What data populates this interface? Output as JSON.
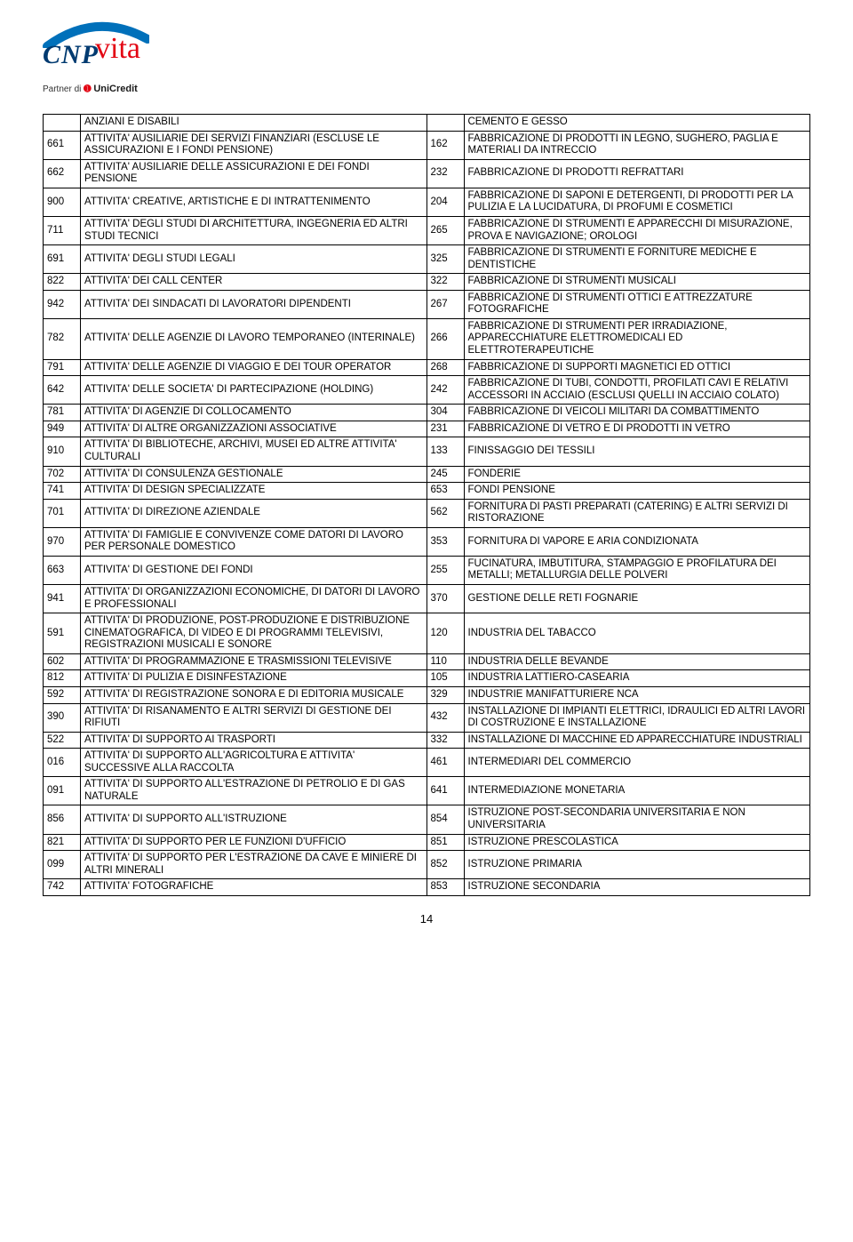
{
  "logo": {
    "brand_left": "CNP",
    "brand_right": "vita",
    "partner_prefix": "Partner di",
    "partner_brand": "UniCredit"
  },
  "page_number": "14",
  "rows": [
    {
      "c1": "",
      "d1": "ANZIANI E DISABILI",
      "c2": "",
      "d2": "CEMENTO E GESSO",
      "noLeftBorders": true,
      "noRightBorders": true
    },
    {
      "c1": "661",
      "d1": "ATTIVITA' AUSILIARIE DEI SERVIZI FINANZIARI (ESCLUSE LE ASSICURAZIONI E I FONDI PENSIONE)",
      "c2": "162",
      "d2": "FABBRICAZIONE DI PRODOTTI IN LEGNO, SUGHERO, PAGLIA E MATERIALI DA INTRECCIO"
    },
    {
      "c1": "662",
      "d1": "ATTIVITA' AUSILIARIE DELLE ASSICURAZIONI E DEI FONDI PENSIONE",
      "c2": "232",
      "d2": "FABBRICAZIONE DI PRODOTTI REFRATTARI"
    },
    {
      "c1": "900",
      "d1": "ATTIVITA' CREATIVE, ARTISTICHE E DI INTRATTENIMENTO",
      "c2": "204",
      "d2": "FABBRICAZIONE DI SAPONI E DETERGENTI, DI PRODOTTI PER LA PULIZIA E LA LUCIDATURA, DI PROFUMI E COSMETICI"
    },
    {
      "c1": "711",
      "d1": "ATTIVITA' DEGLI STUDI DI ARCHITETTURA, INGEGNERIA ED ALTRI STUDI TECNICI",
      "c2": "265",
      "d2": "FABBRICAZIONE DI STRUMENTI E APPARECCHI DI MISURAZIONE, PROVA E NAVIGAZIONE; OROLOGI"
    },
    {
      "c1": "691",
      "d1": "ATTIVITA' DEGLI STUDI LEGALI",
      "c2": "325",
      "d2": "FABBRICAZIONE DI STRUMENTI E FORNITURE MEDICHE E DENTISTICHE"
    },
    {
      "c1": "822",
      "d1": "ATTIVITA' DEI CALL CENTER",
      "c2": "322",
      "d2": "FABBRICAZIONE DI STRUMENTI MUSICALI"
    },
    {
      "c1": "942",
      "d1": "ATTIVITA' DEI SINDACATI DI LAVORATORI DIPENDENTI",
      "c2": "267",
      "d2": "FABBRICAZIONE DI STRUMENTI OTTICI E ATTREZZATURE FOTOGRAFICHE"
    },
    {
      "c1": "782",
      "d1": "ATTIVITA' DELLE AGENZIE DI LAVORO TEMPORANEO (INTERINALE)",
      "c2": "266",
      "d2": "FABBRICAZIONE DI STRUMENTI PER IRRADIAZIONE, APPARECCHIATURE ELETTROMEDICALI ED ELETTROTERAPEUTICHE"
    },
    {
      "c1": "791",
      "d1": "ATTIVITA' DELLE AGENZIE DI VIAGGIO E DEI TOUR OPERATOR",
      "c2": "268",
      "d2": "FABBRICAZIONE DI SUPPORTI MAGNETICI ED OTTICI"
    },
    {
      "c1": "642",
      "d1": "ATTIVITA' DELLE SOCIETA' DI PARTECIPAZIONE (HOLDING)",
      "c2": "242",
      "d2": "FABBRICAZIONE DI TUBI, CONDOTTI, PROFILATI CAVI E RELATIVI ACCESSORI IN ACCIAIO (ESCLUSI QUELLI IN ACCIAIO COLATO)"
    },
    {
      "c1": "781",
      "d1": "ATTIVITA' DI AGENZIE DI COLLOCAMENTO",
      "c2": "304",
      "d2": "FABBRICAZIONE DI VEICOLI MILITARI DA COMBATTIMENTO"
    },
    {
      "c1": "949",
      "d1": "ATTIVITA' DI ALTRE ORGANIZZAZIONI ASSOCIATIVE",
      "c2": "231",
      "d2": "FABBRICAZIONE DI VETRO E DI PRODOTTI IN VETRO"
    },
    {
      "c1": "910",
      "d1": "ATTIVITA' DI BIBLIOTECHE, ARCHIVI, MUSEI ED ALTRE ATTIVITA' CULTURALI",
      "c2": "133",
      "d2": "FINISSAGGIO DEI TESSILI"
    },
    {
      "c1": "702",
      "d1": "ATTIVITA' DI CONSULENZA GESTIONALE",
      "c2": "245",
      "d2": "FONDERIE"
    },
    {
      "c1": "741",
      "d1": "ATTIVITA' DI DESIGN SPECIALIZZATE",
      "c2": "653",
      "d2": "FONDI PENSIONE"
    },
    {
      "c1": "701",
      "d1": "ATTIVITA' DI DIREZIONE AZIENDALE",
      "c2": "562",
      "d2": "FORNITURA DI PASTI PREPARATI (CATERING) E ALTRI SERVIZI DI RISTORAZIONE"
    },
    {
      "c1": "970",
      "d1": "ATTIVITA' DI FAMIGLIE E CONVIVENZE COME DATORI DI LAVORO PER PERSONALE DOMESTICO",
      "c2": "353",
      "d2": "FORNITURA DI VAPORE E ARIA CONDIZIONATA"
    },
    {
      "c1": "663",
      "d1": "ATTIVITA' DI GESTIONE DEI FONDI",
      "c2": "255",
      "d2": "FUCINATURA, IMBUTITURA, STAMPAGGIO E PROFILATURA DEI METALLI; METALLURGIA DELLE POLVERI"
    },
    {
      "c1": "941",
      "d1": "ATTIVITA' DI ORGANIZZAZIONI ECONOMICHE, DI DATORI DI LAVORO E PROFESSIONALI",
      "c2": "370",
      "d2": "GESTIONE DELLE RETI FOGNARIE"
    },
    {
      "c1": "591",
      "d1": "ATTIVITA' DI PRODUZIONE, POST-PRODUZIONE E DISTRIBUZIONE CINEMATOGRAFICA, DI VIDEO E DI PROGRAMMI TELEVISIVI, REGISTRAZIONI MUSICALI E SONORE",
      "c2": "120",
      "d2": "INDUSTRIA DEL TABACCO"
    },
    {
      "c1": "602",
      "d1": "ATTIVITA' DI PROGRAMMAZIONE E TRASMISSIONI TELEVISIVE",
      "c2": "110",
      "d2": "INDUSTRIA DELLE BEVANDE"
    },
    {
      "c1": "812",
      "d1": "ATTIVITA' DI PULIZIA E DISINFESTAZIONE",
      "c2": "105",
      "d2": "INDUSTRIA LATTIERO-CASEARIA"
    },
    {
      "c1": "592",
      "d1": "ATTIVITA' DI REGISTRAZIONE SONORA E DI EDITORIA MUSICALE",
      "c2": "329",
      "d2": "INDUSTRIE MANIFATTURIERE NCA"
    },
    {
      "c1": "390",
      "d1": "ATTIVITA' DI RISANAMENTO E ALTRI SERVIZI DI GESTIONE DEI RIFIUTI",
      "c2": "432",
      "d2": "INSTALLAZIONE DI IMPIANTI ELETTRICI, IDRAULICI ED ALTRI LAVORI DI COSTRUZIONE E INSTALLAZIONE"
    },
    {
      "c1": "522",
      "d1": "ATTIVITA' DI SUPPORTO AI TRASPORTI",
      "c2": "332",
      "d2": "INSTALLAZIONE DI MACCHINE ED APPARECCHIATURE INDUSTRIALI"
    },
    {
      "c1": "016",
      "d1": "ATTIVITA' DI SUPPORTO ALL'AGRICOLTURA E ATTIVITA' SUCCESSIVE ALLA RACCOLTA",
      "c2": "461",
      "d2": "INTERMEDIARI DEL COMMERCIO"
    },
    {
      "c1": "091",
      "d1": "ATTIVITA' DI SUPPORTO ALL'ESTRAZIONE DI PETROLIO E DI GAS NATURALE",
      "c2": "641",
      "d2": "INTERMEDIAZIONE MONETARIA"
    },
    {
      "c1": "856",
      "d1": "ATTIVITA' DI SUPPORTO ALL'ISTRUZIONE",
      "c2": "854",
      "d2": "ISTRUZIONE POST-SECONDARIA UNIVERSITARIA E NON UNIVERSITARIA"
    },
    {
      "c1": "821",
      "d1": "ATTIVITA' DI SUPPORTO PER LE FUNZIONI D'UFFICIO",
      "c2": "851",
      "d2": "ISTRUZIONE PRESCOLASTICA"
    },
    {
      "c1": "099",
      "d1": "ATTIVITA' DI SUPPORTO PER L'ESTRAZIONE DA CAVE E MINIERE DI ALTRI MINERALI",
      "c2": "852",
      "d2": "ISTRUZIONE PRIMARIA"
    },
    {
      "c1": "742",
      "d1": "ATTIVITA' FOTOGRAFICHE",
      "c2": "853",
      "d2": "ISTRUZIONE SECONDARIA"
    }
  ]
}
